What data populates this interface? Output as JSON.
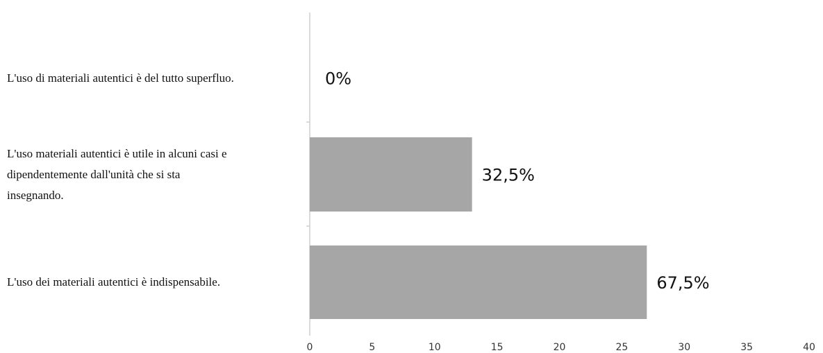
{
  "chart_data": {
    "type": "bar",
    "orientation": "horizontal",
    "categories": [
      "L'uso di materiali autentici è del tutto superfluo.",
      "L'uso materiali autentici è utile in alcuni casi e dipendentemente dall'unità che si sta insegnando.",
      "L'uso dei materiali autentici è indispensabile."
    ],
    "category_lines": [
      [
        "L'uso di materiali autentici è del tutto superfluo."
      ],
      [
        "L'uso materiali autentici è utile in alcuni casi e",
        "dipendentemente dall'unità che si sta",
        "insegnando."
      ],
      [
        "L'uso dei materiali autentici è indispensabile."
      ]
    ],
    "values": [
      0,
      13,
      27
    ],
    "data_labels": [
      "0%",
      "32,5%",
      "67,5%"
    ],
    "xlim": [
      0,
      40
    ],
    "x_ticks": [
      0,
      5,
      10,
      15,
      20,
      25,
      30,
      35,
      40
    ],
    "x_tick_labels": [
      "0",
      "5",
      "10",
      "15",
      "20",
      "25",
      "30",
      "35",
      "40"
    ],
    "grid": false,
    "bar_color": "#a6a6a6",
    "axis_color": "#cfcfcf",
    "title": "",
    "xlabel": "",
    "ylabel": ""
  }
}
